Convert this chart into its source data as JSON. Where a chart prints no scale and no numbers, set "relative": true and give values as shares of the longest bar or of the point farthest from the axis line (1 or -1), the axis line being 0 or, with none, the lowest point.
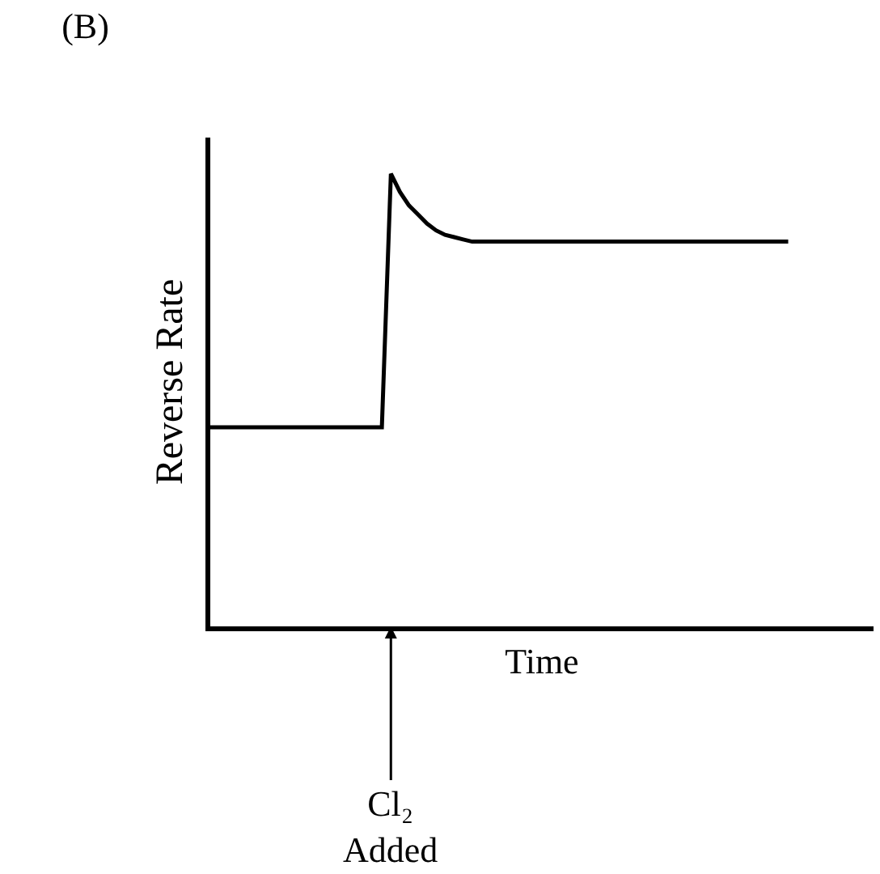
{
  "chart_data": {
    "type": "line",
    "title": "(B)",
    "xlabel": "Time",
    "ylabel": "Reverse Rate",
    "relative": true,
    "color": "#000000",
    "marker": "none",
    "line_style": "solid",
    "annotations": [
      "Cl₂\nAdded"
    ],
    "categories": [
      null,
      null,
      null,
      null,
      null,
      null,
      null,
      null,
      null,
      null,
      null,
      null,
      null,
      null,
      null,
      null,
      null,
      null,
      null,
      null,
      null,
      null,
      null,
      null,
      null,
      null,
      null,
      null,
      null,
      null,
      null,
      null,
      null,
      null,
      null,
      null,
      null,
      null,
      null,
      null,
      null,
      null,
      null,
      null,
      null,
      null,
      null,
      null,
      null,
      null,
      null,
      null,
      null,
      null,
      null,
      null,
      null,
      null,
      null,
      null,
      null,
      null,
      null,
      null,
      null
    ],
    "values": [
      0.44,
      0.44,
      0.44,
      0.44,
      0.44,
      0.44,
      0.44,
      0.44,
      0.44,
      0.44,
      0.44,
      0.44,
      0.44,
      0.44,
      0.44,
      0.44,
      0.44,
      0.44,
      0.44,
      0.44,
      1.0,
      0.96,
      0.93,
      0.91,
      0.89,
      0.875,
      0.865,
      0.86,
      0.855,
      0.85,
      0.85,
      0.85,
      0.85,
      0.85,
      0.85,
      0.85,
      0.85,
      0.85,
      0.85,
      0.85,
      0.85,
      0.85,
      0.85,
      0.85,
      0.85,
      0.85,
      0.85,
      0.85,
      0.85,
      0.85,
      0.85,
      0.85,
      0.85,
      0.85,
      0.85,
      0.85,
      0.85,
      0.85,
      0.85,
      0.85,
      0.85,
      0.85,
      0.85,
      0.85,
      0.85
    ]
  }
}
